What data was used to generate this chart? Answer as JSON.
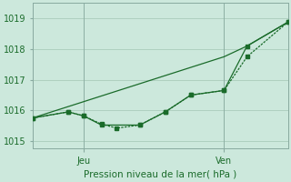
{
  "bg_color": "#cce8dc",
  "grid_color": "#aaccbb",
  "line_color": "#1a6b2a",
  "title": "Pression niveau de la mer( hPa )",
  "ylim": [
    1014.75,
    1019.5
  ],
  "yticks": [
    1015,
    1016,
    1017,
    1018,
    1019
  ],
  "xlim": [
    0,
    10
  ],
  "xtick_positions": [
    2.0,
    7.5
  ],
  "xtick_labels": [
    "Jeu",
    "Ven"
  ],
  "vline_positions": [
    2.0,
    7.5
  ],
  "line1_x": [
    0.0,
    1.4,
    2.0,
    2.7,
    3.3,
    4.2,
    5.2,
    6.2,
    7.5,
    8.4,
    10.0
  ],
  "line1_y": [
    1015.75,
    1015.95,
    1015.82,
    1015.55,
    1015.42,
    1015.52,
    1015.95,
    1016.5,
    1016.65,
    1017.75,
    1018.88
  ],
  "line2_x": [
    0.0,
    1.4,
    2.0,
    2.7,
    4.2,
    5.2,
    6.2,
    7.5,
    8.4,
    10.0
  ],
  "line2_y": [
    1015.75,
    1015.95,
    1015.82,
    1015.52,
    1015.52,
    1015.95,
    1016.5,
    1016.65,
    1018.1,
    1018.88
  ],
  "line3_x": [
    0.0,
    7.5,
    8.4,
    10.0
  ],
  "line3_y": [
    1015.75,
    1017.75,
    1018.1,
    1018.88
  ],
  "ms": 2.5,
  "lw": 0.9
}
